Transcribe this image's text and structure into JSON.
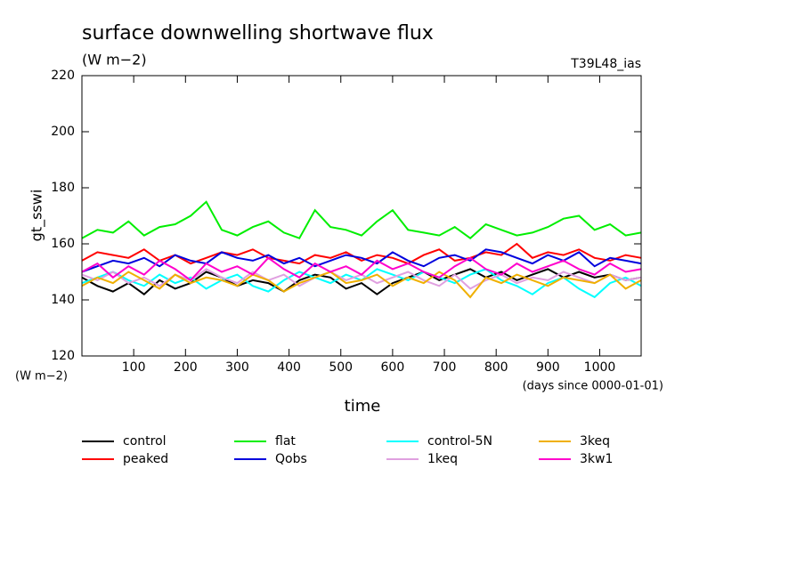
{
  "chart_data": {
    "type": "line",
    "title": "surface downwelling shortwave flux",
    "subtitle": "(W m−2)",
    "annotation": "T39L48_ias",
    "y_label": "gt_sswi",
    "y_units": "(W m−2)",
    "x_label": "time",
    "x_units": "(days since 0000-01-01)",
    "xlim": [
      0,
      1080
    ],
    "xticks": [
      100,
      200,
      300,
      400,
      500,
      600,
      700,
      800,
      900,
      1000
    ],
    "ylim": [
      120,
      220
    ],
    "yticks": [
      120,
      140,
      160,
      180,
      200,
      220
    ],
    "x": [
      0,
      30,
      60,
      90,
      120,
      150,
      180,
      210,
      240,
      270,
      300,
      330,
      360,
      390,
      420,
      450,
      480,
      510,
      540,
      570,
      600,
      630,
      660,
      690,
      720,
      750,
      780,
      810,
      840,
      870,
      900,
      930,
      960,
      990,
      1020,
      1050,
      1080
    ],
    "series": [
      {
        "name": "control",
        "color": "#000000",
        "values": [
          148,
          145,
          143,
          146,
          142,
          147,
          144,
          146,
          150,
          148,
          145,
          147,
          146,
          143,
          147,
          149,
          148,
          144,
          146,
          142,
          146,
          148,
          150,
          147,
          149,
          151,
          148,
          150,
          147,
          149,
          151,
          148,
          150,
          148,
          149,
          147,
          148
        ]
      },
      {
        "name": "peaked",
        "color": "#ff0000",
        "values": [
          154,
          157,
          156,
          155,
          158,
          154,
          156,
          153,
          155,
          157,
          156,
          158,
          155,
          154,
          153,
          156,
          155,
          157,
          154,
          156,
          155,
          153,
          156,
          158,
          154,
          155,
          157,
          156,
          160,
          155,
          157,
          156,
          158,
          155,
          154,
          156,
          155
        ]
      },
      {
        "name": "flat",
        "color": "#00ee00",
        "values": [
          162,
          165,
          164,
          168,
          163,
          166,
          167,
          170,
          175,
          165,
          163,
          166,
          168,
          164,
          162,
          172,
          166,
          165,
          163,
          168,
          172,
          165,
          164,
          163,
          166,
          162,
          167,
          165,
          163,
          164,
          166,
          169,
          170,
          165,
          167,
          163,
          164
        ]
      },
      {
        "name": "Qobs",
        "color": "#0000dd",
        "values": [
          150,
          152,
          154,
          153,
          155,
          152,
          156,
          154,
          153,
          157,
          155,
          154,
          156,
          153,
          155,
          152,
          154,
          156,
          155,
          153,
          157,
          154,
          152,
          155,
          156,
          154,
          158,
          157,
          155,
          153,
          156,
          154,
          157,
          152,
          155,
          154,
          153
        ]
      },
      {
        "name": "control-5N",
        "color": "#00ffff",
        "values": [
          146,
          148,
          150,
          147,
          145,
          149,
          146,
          148,
          144,
          147,
          149,
          145,
          143,
          147,
          150,
          148,
          146,
          149,
          147,
          151,
          149,
          147,
          150,
          148,
          146,
          149,
          151,
          147,
          145,
          142,
          146,
          148,
          144,
          141,
          146,
          148,
          145
        ]
      },
      {
        "name": "1keq",
        "color": "#e0a0e0",
        "values": [
          149,
          147,
          150,
          146,
          148,
          145,
          149,
          147,
          151,
          148,
          146,
          150,
          147,
          149,
          145,
          148,
          150,
          147,
          149,
          146,
          148,
          150,
          147,
          145,
          149,
          144,
          147,
          149,
          146,
          148,
          147,
          150,
          148,
          146,
          149,
          147,
          148
        ]
      },
      {
        "name": "3keq",
        "color": "#f0b000",
        "values": [
          145,
          148,
          146,
          150,
          147,
          144,
          149,
          146,
          148,
          147,
          145,
          149,
          147,
          143,
          146,
          148,
          150,
          146,
          147,
          149,
          145,
          148,
          146,
          150,
          147,
          141,
          148,
          146,
          149,
          147,
          145,
          148,
          147,
          146,
          149,
          144,
          147
        ]
      },
      {
        "name": "3kw1",
        "color": "#ff00cc",
        "values": [
          150,
          153,
          148,
          152,
          149,
          154,
          151,
          147,
          153,
          150,
          152,
          149,
          155,
          151,
          148,
          153,
          150,
          152,
          149,
          154,
          151,
          153,
          150,
          148,
          152,
          155,
          151,
          149,
          153,
          150,
          152,
          154,
          151,
          149,
          153,
          150,
          151
        ]
      }
    ]
  }
}
